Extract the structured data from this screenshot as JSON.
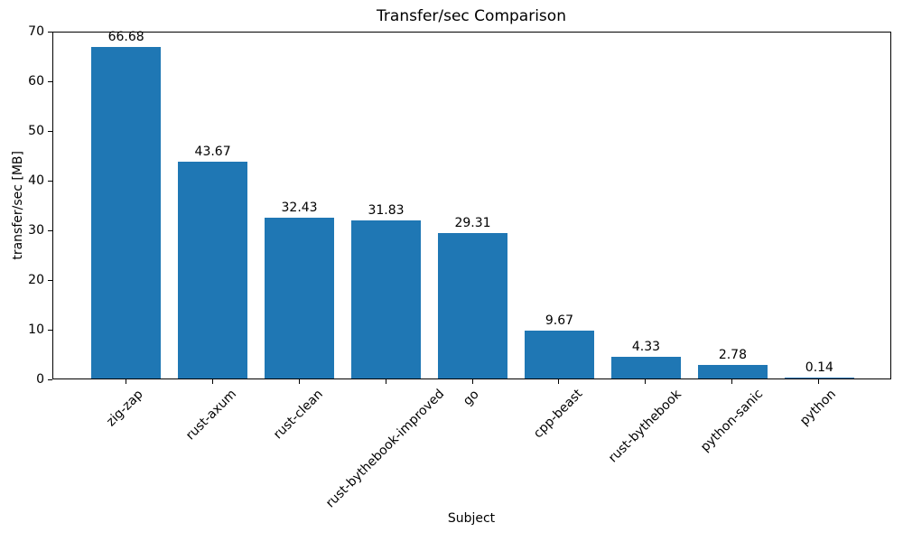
{
  "chart_data": {
    "type": "bar",
    "title": "Transfer/sec Comparison",
    "xlabel": "Subject",
    "ylabel": "transfer/sec [MB]",
    "categories": [
      "zig-zap",
      "rust-axum",
      "rust-clean",
      "rust-bythebook-improved",
      "go",
      "cpp-beast",
      "rust-bythebook",
      "python-sanic",
      "python"
    ],
    "values": [
      66.68,
      43.67,
      32.43,
      31.83,
      29.31,
      9.67,
      4.33,
      2.78,
      0.14
    ],
    "bar_labels": [
      "66.68",
      "43.67",
      "32.43",
      "31.83",
      "29.31",
      "9.67",
      "4.33",
      "2.78",
      "0.14"
    ],
    "yticks": [
      0,
      10,
      20,
      30,
      40,
      50,
      60,
      70
    ],
    "ylim": [
      0,
      70
    ],
    "bar_color": "#1f77b4",
    "axis_color": "#000000",
    "grid": false,
    "legend_position": "none",
    "x_tick_label_rotation": 45
  }
}
